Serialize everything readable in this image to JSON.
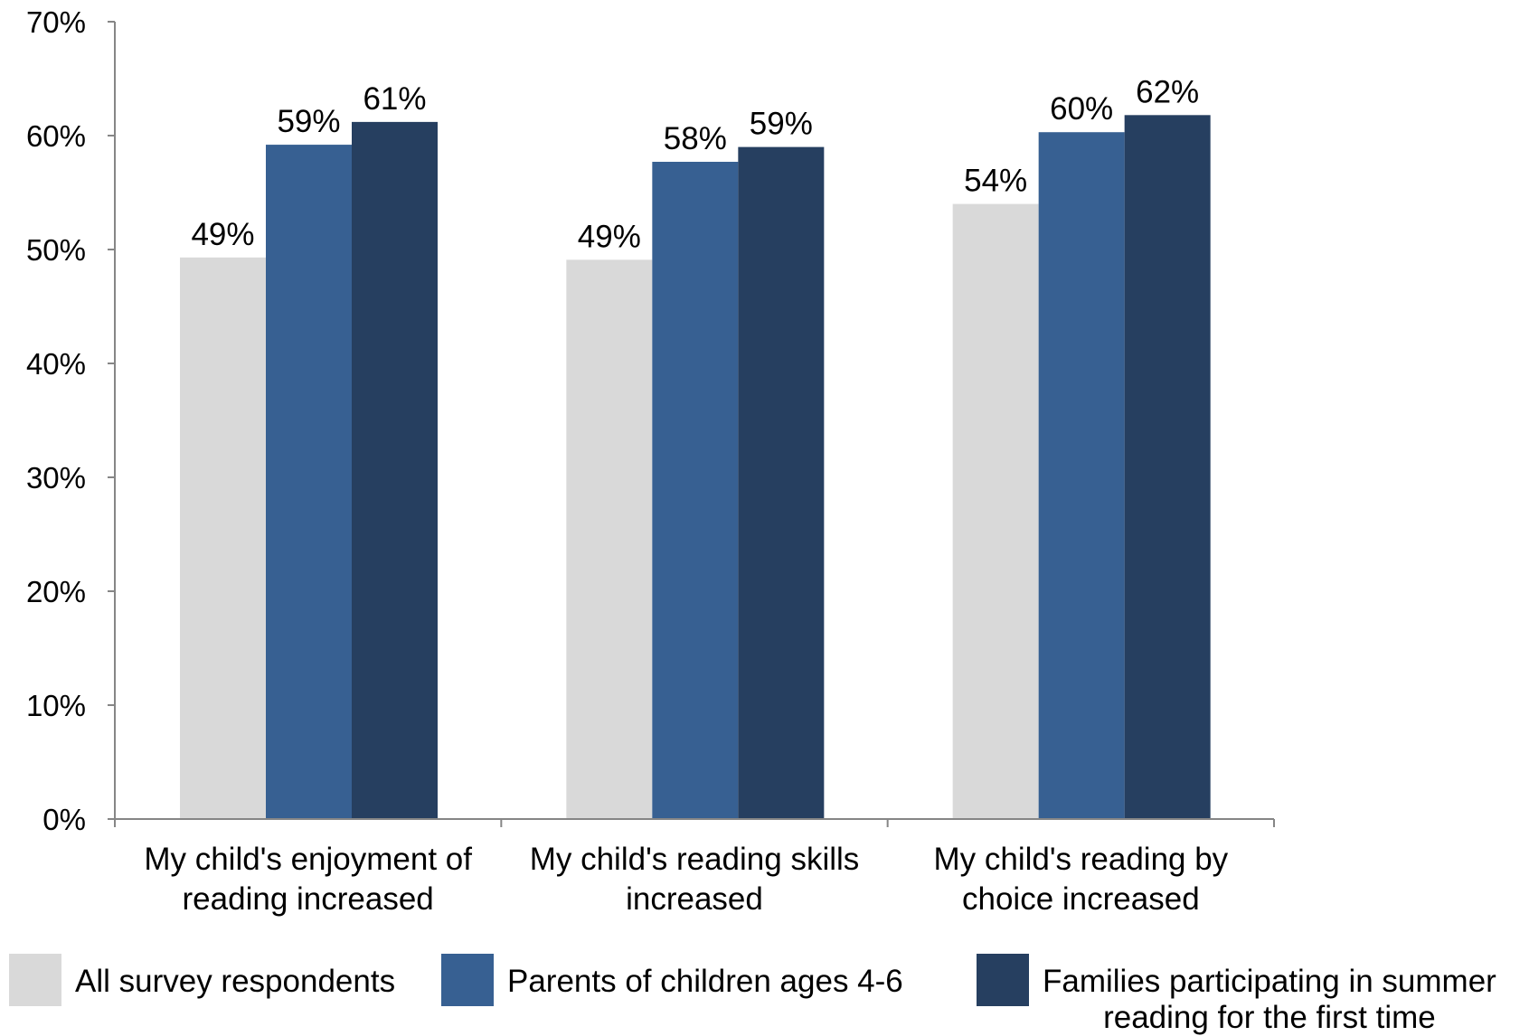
{
  "chart_data": {
    "type": "bar",
    "categories": [
      "My child's enjoyment of reading increased",
      "My child's reading skills increased",
      "My child's reading by choice increased"
    ],
    "category_lines": [
      [
        "My child's enjoyment of",
        "reading increased"
      ],
      [
        "My child's reading skills",
        "increased"
      ],
      [
        "My child's reading by",
        "choice increased"
      ]
    ],
    "series": [
      {
        "name": "All survey respondents",
        "values": [
          49.3,
          49.1,
          54.0
        ],
        "labels": [
          "49%",
          "49%",
          "54%"
        ],
        "color": "#d9d9d9"
      },
      {
        "name": "Parents of children ages 4-6",
        "values": [
          59.2,
          57.7,
          60.3
        ],
        "labels": [
          "59%",
          "58%",
          "60%"
        ],
        "color": "#376092"
      },
      {
        "name": "Families participating in summer reading for the first time",
        "values": [
          61.2,
          59.0,
          61.8
        ],
        "labels": [
          "61%",
          "59%",
          "62%"
        ],
        "color": "#263f60"
      }
    ],
    "legend_labels": [
      "All survey respondents",
      "Parents of children ages 4-6",
      "Families participating in summer\nreading for the first time"
    ],
    "ylim": [
      0,
      70
    ],
    "yticks": [
      0,
      10,
      20,
      30,
      40,
      50,
      60,
      70
    ],
    "ytick_labels": [
      "0%",
      "10%",
      "20%",
      "30%",
      "40%",
      "50%",
      "60%",
      "70%"
    ],
    "grid": false,
    "legend_position": "bottom",
    "axis_color": "#868686",
    "title": "",
    "xlabel": "",
    "ylabel": ""
  }
}
